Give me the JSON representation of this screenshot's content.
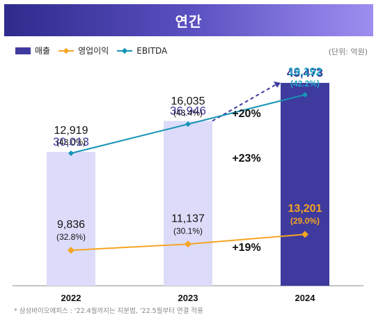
{
  "header": {
    "title": "연간"
  },
  "legend": {
    "revenue": "매출",
    "op_profit": "영업이익",
    "ebitda": "EBITDA"
  },
  "unit": "(단위: 억원)",
  "footnote": "* 삼성바이오에피스 : '22.4월까지는 지분법, '22.5월부터 연결 적용",
  "colors": {
    "bar_light": "#dcdcfa",
    "bar_dark": "#3e3a9e",
    "op_line": "#f5a423",
    "ebitda_line": "#1594b5",
    "highlight_op": "#f5a423",
    "highlight_ebitda": "#1fa3c4"
  },
  "chart_data": {
    "type": "bar",
    "categories": [
      "2022",
      "2023",
      "2024"
    ],
    "ylim": [
      0,
      50000
    ],
    "series": [
      {
        "name": "매출",
        "type": "bar",
        "values": [
          30013,
          36946,
          45473
        ],
        "labels": [
          "30,013",
          "36,946",
          "45,473"
        ]
      },
      {
        "name": "영업이익",
        "type": "line",
        "values": [
          9836,
          11137,
          13201
        ],
        "labels": [
          "9,836",
          "11,137",
          "13,201"
        ],
        "margins": [
          "(32.8%)",
          "(30.1%)",
          "(29.0%)"
        ]
      },
      {
        "name": "EBITDA",
        "type": "line",
        "values": [
          12919,
          16035,
          19192
        ],
        "labels": [
          "12,919",
          "16,035",
          "19,192"
        ],
        "margins": [
          "(43.0%)",
          "(43.4%)",
          "(42.2%)"
        ]
      }
    ],
    "growth_annotations": [
      {
        "series": "EBITDA",
        "text": "+20%"
      },
      {
        "series": "매출",
        "text": "+23%"
      },
      {
        "series": "영업이익",
        "text": "+19%"
      }
    ]
  }
}
